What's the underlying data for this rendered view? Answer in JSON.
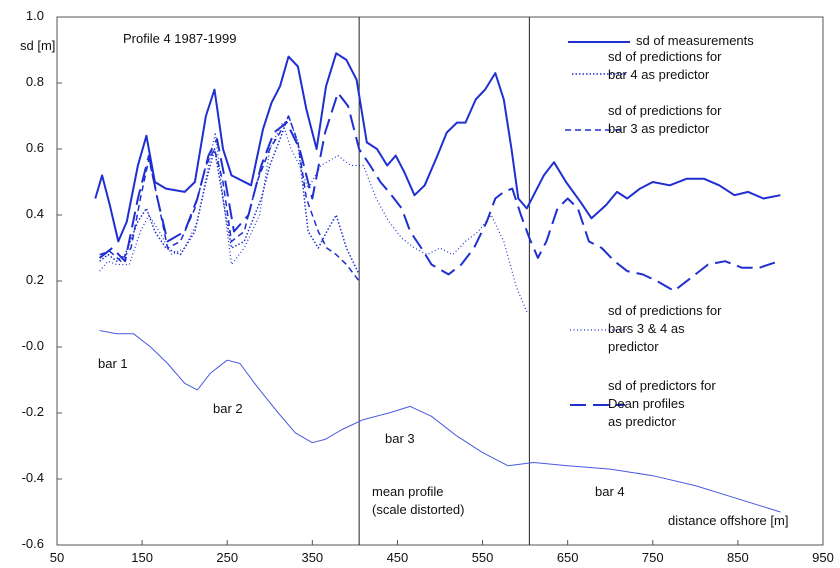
{
  "chart_data": {
    "type": "line",
    "ylabel": "sd [m]",
    "xlabel": "distance offshore [m]",
    "title": "Profile 4 1987-1999",
    "xlim": [
      50,
      950
    ],
    "xticks": [
      50,
      150,
      250,
      350,
      450,
      550,
      650,
      750,
      850,
      950
    ],
    "ylim": [
      -0.6,
      1.0
    ],
    "yticks": [
      -0.6,
      -0.4,
      -0.2,
      {
        "value": 0,
        "label": "-0.0"
      },
      0.2,
      0.4,
      0.6,
      0.8,
      {
        "value": 1,
        "label": "1.0"
      }
    ],
    "vlines": [
      405,
      605
    ],
    "annotations": [
      "bar 1",
      "bar 2",
      "bar 3",
      "bar 4",
      "mean profile\n(scale distorted)"
    ],
    "series": [
      {
        "name": "sd of measurements",
        "color": "#1f2fd0",
        "style": "solid",
        "width": 2,
        "x": [
          95,
          103,
          112,
          122,
          132,
          145,
          155,
          165,
          178,
          200,
          212,
          225,
          235,
          245,
          255,
          278,
          292,
          302,
          312,
          322,
          333,
          343,
          355,
          366,
          378,
          390,
          402,
          414,
          426,
          438,
          448,
          458,
          470,
          482,
          497,
          508,
          520,
          530,
          542,
          553,
          565,
          575,
          584,
          592,
          602,
          612,
          622,
          634,
          648,
          665,
          678,
          695,
          708,
          720,
          735,
          750,
          770,
          790,
          810,
          828,
          846,
          862,
          880,
          900
        ],
        "values": [
          0.45,
          0.52,
          0.43,
          0.32,
          0.38,
          0.55,
          0.64,
          0.5,
          0.48,
          0.47,
          0.5,
          0.7,
          0.78,
          0.6,
          0.52,
          0.49,
          0.66,
          0.74,
          0.79,
          0.88,
          0.85,
          0.72,
          0.6,
          0.79,
          0.89,
          0.87,
          0.81,
          0.62,
          0.6,
          0.55,
          0.58,
          0.53,
          0.46,
          0.49,
          0.58,
          0.65,
          0.68,
          0.68,
          0.75,
          0.78,
          0.83,
          0.75,
          0.6,
          0.45,
          0.42,
          0.47,
          0.52,
          0.56,
          0.5,
          0.44,
          0.39,
          0.43,
          0.47,
          0.45,
          0.48,
          0.5,
          0.49,
          0.51,
          0.51,
          0.49,
          0.46,
          0.47,
          0.45,
          0.46
        ]
      },
      {
        "name": "sd of predictions for\nbar 4 as predictor",
        "color": "#1f2fd0",
        "style": "dot",
        "width": 1.5,
        "x": [
          100,
          110,
          120,
          130,
          145,
          155,
          165,
          178,
          195,
          212,
          225,
          235,
          245,
          255,
          270,
          290,
          300,
          312,
          322,
          333,
          345,
          357,
          367,
          378,
          390,
          405
        ],
        "values": [
          0.26,
          0.28,
          0.26,
          0.28,
          0.38,
          0.42,
          0.35,
          0.3,
          0.28,
          0.35,
          0.5,
          0.6,
          0.45,
          0.3,
          0.32,
          0.45,
          0.55,
          0.63,
          0.7,
          0.62,
          0.35,
          0.3,
          0.35,
          0.4,
          0.3,
          0.22
        ]
      },
      {
        "name": "sd of predictions for\nbar 3 as predictor",
        "color": "#1f2fd0",
        "style": "dash",
        "width": 1.5,
        "x": [
          100,
          112,
          125,
          137,
          148,
          158,
          168,
          180,
          195,
          212,
          225,
          235,
          245,
          255,
          270,
          285,
          300,
          312,
          322,
          333,
          343,
          357,
          367,
          378,
          390,
          405
        ],
        "values": [
          0.28,
          0.29,
          0.26,
          0.3,
          0.45,
          0.57,
          0.45,
          0.3,
          0.32,
          0.42,
          0.55,
          0.6,
          0.5,
          0.32,
          0.35,
          0.5,
          0.6,
          0.65,
          0.7,
          0.62,
          0.45,
          0.35,
          0.3,
          0.28,
          0.25,
          0.2
        ]
      },
      {
        "name": "sd of predictions for\nbars 3 & 4 as\npredictor",
        "color": "#1f2fd0",
        "style": "fine",
        "width": 1.2,
        "x": [
          100,
          110,
          120,
          135,
          148,
          158,
          170,
          185,
          200,
          215,
          228,
          236,
          245,
          255,
          270,
          288,
          300,
          315,
          325,
          335,
          345,
          360,
          380,
          395,
          410,
          425,
          440,
          455,
          470,
          485,
          500,
          515,
          530,
          545,
          560,
          575,
          590,
          603
        ],
        "values": [
          0.23,
          0.26,
          0.25,
          0.25,
          0.35,
          0.4,
          0.35,
          0.28,
          0.3,
          0.38,
          0.55,
          0.65,
          0.45,
          0.25,
          0.3,
          0.4,
          0.6,
          0.68,
          0.6,
          0.55,
          0.48,
          0.55,
          0.58,
          0.55,
          0.55,
          0.45,
          0.38,
          0.33,
          0.3,
          0.28,
          0.3,
          0.28,
          0.32,
          0.35,
          0.4,
          0.32,
          0.18,
          0.1
        ]
      },
      {
        "name": "sd of predictors for\nDean profiles\nas predictor",
        "color": "#1f2fd0",
        "style": "longdash",
        "width": 2,
        "x": [
          100,
          115,
          130,
          145,
          158,
          168,
          180,
          200,
          215,
          228,
          238,
          248,
          258,
          275,
          290,
          305,
          320,
          335,
          350,
          365,
          380,
          392,
          405,
          418,
          430,
          440,
          455,
          465,
          478,
          490,
          510,
          525,
          540,
          555,
          565,
          575,
          585,
          595,
          605,
          615,
          625,
          638,
          650,
          662,
          675,
          690,
          705,
          720,
          738,
          755,
          775,
          795,
          815,
          835,
          855,
          875,
          898
        ],
        "values": [
          0.27,
          0.3,
          0.26,
          0.45,
          0.58,
          0.45,
          0.32,
          0.35,
          0.45,
          0.58,
          0.63,
          0.5,
          0.35,
          0.4,
          0.55,
          0.65,
          0.68,
          0.6,
          0.45,
          0.65,
          0.77,
          0.73,
          0.6,
          0.55,
          0.5,
          0.47,
          0.42,
          0.35,
          0.3,
          0.25,
          0.22,
          0.25,
          0.3,
          0.38,
          0.45,
          0.47,
          0.48,
          0.4,
          0.33,
          0.27,
          0.32,
          0.42,
          0.45,
          0.42,
          0.32,
          0.3,
          0.26,
          0.23,
          0.22,
          0.2,
          0.17,
          0.21,
          0.25,
          0.26,
          0.24,
          0.24,
          0.26
        ]
      },
      {
        "color": "#4a5ae0",
        "style": "solid",
        "width": 1,
        "x": [
          100,
          120,
          140,
          160,
          180,
          200,
          215,
          230,
          250,
          265,
          285,
          310,
          330,
          350,
          365,
          385,
          410,
          440,
          465,
          490,
          520,
          550,
          580,
          610,
          650,
          700,
          750,
          800,
          850,
          900
        ],
        "values": [
          0.05,
          0.04,
          0.04,
          0.0,
          -0.05,
          -0.11,
          -0.13,
          -0.08,
          -0.04,
          -0.05,
          -0.12,
          -0.2,
          -0.26,
          -0.29,
          -0.28,
          -0.25,
          -0.22,
          -0.2,
          -0.18,
          -0.21,
          -0.27,
          -0.32,
          -0.36,
          -0.35,
          -0.36,
          -0.37,
          -0.39,
          -0.42,
          -0.46,
          -0.5
        ]
      }
    ]
  }
}
